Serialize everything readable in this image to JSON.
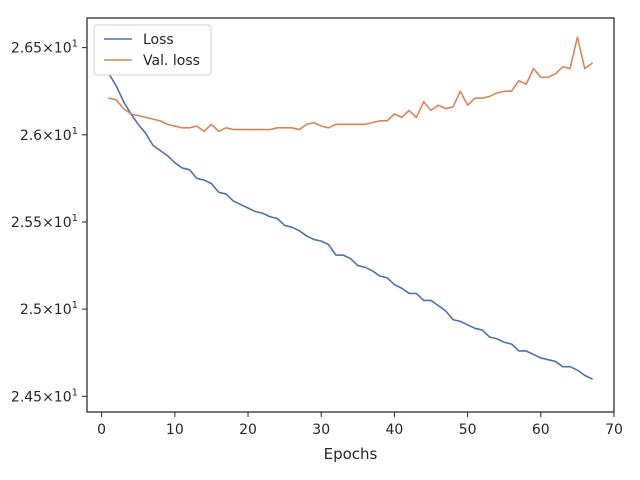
{
  "chart_data": {
    "type": "line",
    "xlabel": "Epochs",
    "ylabel": "",
    "xlim": [
      -2,
      70
    ],
    "ylim": [
      24.41,
      26.67
    ],
    "xticks": [
      0,
      10,
      20,
      30,
      40,
      50,
      60,
      70
    ],
    "xtick_labels": [
      "0",
      "10",
      "20",
      "30",
      "40",
      "50",
      "60",
      "70"
    ],
    "yticks": [
      24.5,
      25.0,
      25.5,
      26.0,
      26.5
    ],
    "ytick_labels": [
      "2.45×10¹",
      "2.5×10¹",
      "2.55×10¹",
      "2.6×10¹",
      "2.65×10¹"
    ],
    "ytick_sup": [
      "1",
      "1",
      "1",
      "1",
      "1"
    ],
    "ytick_base": [
      "2.45×10",
      "2.5×10",
      "2.55×10",
      "2.6×10",
      "2.65×10"
    ],
    "grid": false,
    "legend_position": "top-left",
    "x": [
      1,
      2,
      3,
      4,
      5,
      6,
      7,
      8,
      9,
      10,
      11,
      12,
      13,
      14,
      15,
      16,
      17,
      18,
      19,
      20,
      21,
      22,
      23,
      24,
      25,
      26,
      27,
      28,
      29,
      30,
      31,
      32,
      33,
      34,
      35,
      36,
      37,
      38,
      39,
      40,
      41,
      42,
      43,
      44,
      45,
      46,
      47,
      48,
      49,
      50,
      51,
      52,
      53,
      54,
      55,
      56,
      57,
      58,
      59,
      60,
      61,
      62,
      63,
      64,
      65,
      66,
      67
    ],
    "series": [
      {
        "name": "Loss",
        "color": "#4c72b0",
        "values": [
          26.35,
          26.28,
          26.19,
          26.12,
          26.06,
          26.01,
          25.94,
          25.91,
          25.88,
          25.84,
          25.81,
          25.8,
          25.75,
          25.74,
          25.72,
          25.67,
          25.66,
          25.62,
          25.6,
          25.58,
          25.56,
          25.55,
          25.53,
          25.52,
          25.48,
          25.47,
          25.45,
          25.42,
          25.4,
          25.39,
          25.37,
          25.31,
          25.31,
          25.29,
          25.25,
          25.24,
          25.22,
          25.19,
          25.18,
          25.14,
          25.12,
          25.09,
          25.09,
          25.05,
          25.05,
          25.02,
          24.99,
          24.94,
          24.93,
          24.91,
          24.89,
          24.88,
          24.84,
          24.83,
          24.81,
          24.8,
          24.76,
          24.76,
          24.74,
          24.72,
          24.71,
          24.7,
          24.67,
          24.67,
          24.65,
          24.62,
          24.6
        ]
      },
      {
        "name": "Val. loss",
        "color": "#dd8452",
        "values": [
          26.21,
          26.2,
          26.15,
          26.12,
          26.11,
          26.1,
          26.09,
          26.08,
          26.06,
          26.05,
          26.04,
          26.04,
          26.05,
          26.02,
          26.06,
          26.02,
          26.04,
          26.03,
          26.03,
          26.03,
          26.03,
          26.03,
          26.03,
          26.04,
          26.04,
          26.04,
          26.03,
          26.06,
          26.07,
          26.05,
          26.04,
          26.06,
          26.06,
          26.06,
          26.06,
          26.06,
          26.07,
          26.08,
          26.08,
          26.12,
          26.1,
          26.14,
          26.1,
          26.19,
          26.14,
          26.17,
          26.15,
          26.16,
          26.25,
          26.17,
          26.21,
          26.21,
          26.22,
          26.24,
          26.25,
          26.25,
          26.31,
          26.29,
          26.38,
          26.33,
          26.33,
          26.35,
          26.39,
          26.38,
          26.56,
          26.38,
          26.41
        ]
      }
    ]
  }
}
